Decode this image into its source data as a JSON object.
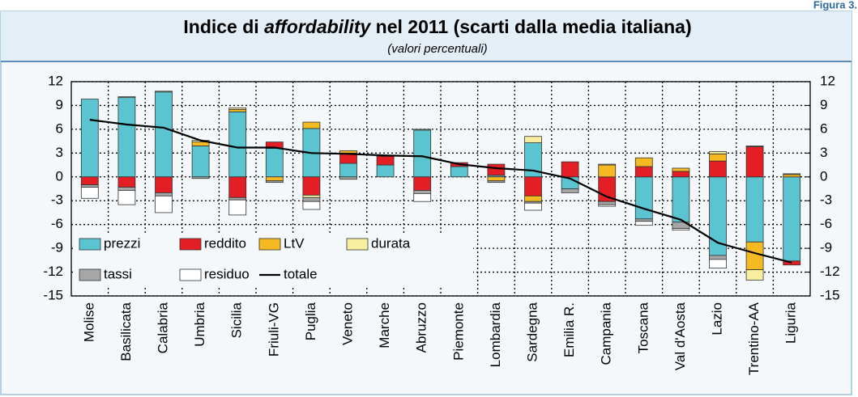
{
  "figure_label": "Figura 3.",
  "chart_data": {
    "type": "stacked-bar-line",
    "title": [
      "Indice di ",
      "affordability",
      " nel 2011 (scarti dalla media italiana)"
    ],
    "subtitle": "(valori percentuali)",
    "categories": [
      "Molise",
      "Basilicata",
      "Calabria",
      "Umbria",
      "Sicilia",
      "Friuli-VG",
      "Puglia",
      "Veneto",
      "Marche",
      "Abruzzo",
      "Piemonte",
      "Lombardia",
      "Sardegna",
      "Emilia R.",
      "Campania",
      "Toscana",
      "Val d'Aosta",
      "Lazio",
      "Trentino-AA",
      "Liguria"
    ],
    "series": [
      {
        "name": "prezzi",
        "color": "#5bc4d1",
        "kind": "bar",
        "values": [
          9.8,
          10.0,
          10.7,
          3.9,
          8.2,
          3.6,
          6.1,
          1.7,
          1.5,
          5.9,
          1.3,
          0.2,
          4.3,
          -1.5,
          0,
          -5.3,
          -5.7,
          -9.9,
          -8.2,
          -10.6
        ]
      },
      {
        "name": "reddito",
        "color": "#e31e24",
        "kind": "bar",
        "values": [
          -1.0,
          -1.3,
          -2.0,
          0,
          -2.6,
          0.8,
          -2.3,
          1.3,
          1.1,
          -1.7,
          0.5,
          1.4,
          -2.4,
          1.9,
          -3.1,
          1.3,
          0.7,
          2.0,
          3.8,
          -0.5
        ]
      },
      {
        "name": "LtV",
        "color": "#f5b921",
        "kind": "bar",
        "values": [
          0,
          0,
          0,
          0.5,
          0.3,
          -0.5,
          0.8,
          0.3,
          0,
          0,
          0,
          -0.5,
          -0.7,
          0,
          1.5,
          1.1,
          0.4,
          0.9,
          -3.5,
          0.3
        ]
      },
      {
        "name": "durata",
        "color": "#f7eea0",
        "kind": "bar",
        "values": [
          0,
          0.1,
          0.1,
          0.2,
          0.2,
          0,
          -0.3,
          0,
          0.1,
          0.1,
          0,
          0,
          0.8,
          0,
          0.1,
          0,
          0,
          0.3,
          -1.3,
          0.1
        ]
      },
      {
        "name": "tassi",
        "color": "#a6a6a6",
        "kind": "bar",
        "values": [
          -0.3,
          -0.4,
          -0.4,
          -0.2,
          -0.3,
          -0.2,
          -0.5,
          -0.3,
          0,
          -0.4,
          0,
          -0.2,
          -0.2,
          -0.5,
          -0.4,
          -0.3,
          -0.8,
          -0.5,
          0.1,
          0
        ]
      },
      {
        "name": "residuo",
        "color": "#ffffff",
        "kind": "bar",
        "values": [
          -1.4,
          -1.8,
          -2.1,
          0,
          -1.9,
          0,
          -1.0,
          0,
          0,
          -1.0,
          0,
          0,
          -0.9,
          0,
          -0.2,
          -0.5,
          -0.2,
          -1.1,
          0,
          0
        ]
      },
      {
        "name": "totale",
        "color": "#000000",
        "kind": "line",
        "values": [
          7.2,
          6.6,
          6.2,
          4.6,
          3.7,
          3.7,
          3.0,
          2.9,
          2.7,
          2.6,
          1.6,
          1.1,
          0.8,
          -0.2,
          -2.5,
          -4.0,
          -5.4,
          -8.3,
          -9.6,
          -10.8
        ]
      }
    ],
    "ylim": [
      -15,
      12
    ],
    "yticks": [
      12,
      9,
      6,
      3,
      0,
      -3,
      -6,
      -9,
      -12,
      -15
    ],
    "y2lim": [
      -15,
      12
    ],
    "y2ticks": [
      12,
      9,
      6,
      3,
      0,
      -3,
      -6,
      -9,
      -12,
      -15
    ],
    "grid": true
  }
}
